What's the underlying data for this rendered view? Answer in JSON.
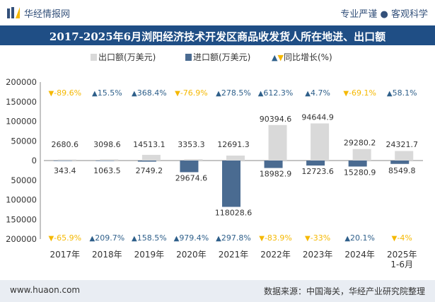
{
  "header": {
    "brand": "华经情报网",
    "slogan": "专业严谨 ● 客观科学"
  },
  "title": "2017-2025年6月浏阳经济技术开发区商品收发货人所在地进、出口额",
  "legend": {
    "export": "出口额(万美元)",
    "import": "进口额(万美元)",
    "growth": "同比增长(%)"
  },
  "footer": {
    "left": "www.huaon.com",
    "right": "数据来源：中国海关，华经产业研究院整理"
  },
  "colors": {
    "export": "#d9d9d9",
    "import": "#4a6b91",
    "up": "#2e5f8a",
    "down": "#f5b800",
    "title_bg": "#1f4e85"
  },
  "chart_data": {
    "type": "bar",
    "categories": [
      "2017年",
      "2018年",
      "2019年",
      "2020年",
      "2021年",
      "2022年",
      "2023年",
      "2024年",
      "2025年\n1-6月"
    ],
    "series": [
      {
        "name": "出口额(万美元)",
        "values": [
          2680.6,
          3098.6,
          14513.1,
          3353.3,
          12691.3,
          90394.6,
          94644.9,
          29280.2,
          24321.7
        ]
      },
      {
        "name": "进口额(万美元)",
        "values": [
          -343.4,
          -1063.5,
          -2749.2,
          -29674.6,
          -118028.6,
          -18982.9,
          -12723.6,
          -15280.9,
          -8549.8
        ]
      }
    ],
    "export_labels": [
      "2680.6",
      "3098.6",
      "14513.1",
      "3353.3",
      "12691.3",
      "90394.6",
      "94644.9",
      "29280.2",
      "24321.7"
    ],
    "import_labels": [
      "343.4",
      "1063.5",
      "2749.2",
      "29674.6",
      "118028.6",
      "18982.9",
      "12723.6",
      "15280.9",
      "8549.8"
    ],
    "export_growth": [
      "-89.6%",
      "15.5%",
      "368.4%",
      "-76.9%",
      "278.5%",
      "612.3%",
      "4.7%",
      "-69.1%",
      "58.1%"
    ],
    "import_growth": [
      "-65.9%",
      "209.7%",
      "158.5%",
      "979.4%",
      "297.8%",
      "-83.9%",
      "-33%",
      "20.1%",
      "-4%"
    ],
    "yticks": [
      "200000",
      "150000",
      "100000",
      "50000",
      "0",
      "50000",
      "100000",
      "150000",
      "200000"
    ],
    "ylim": [
      -200000,
      200000
    ]
  }
}
